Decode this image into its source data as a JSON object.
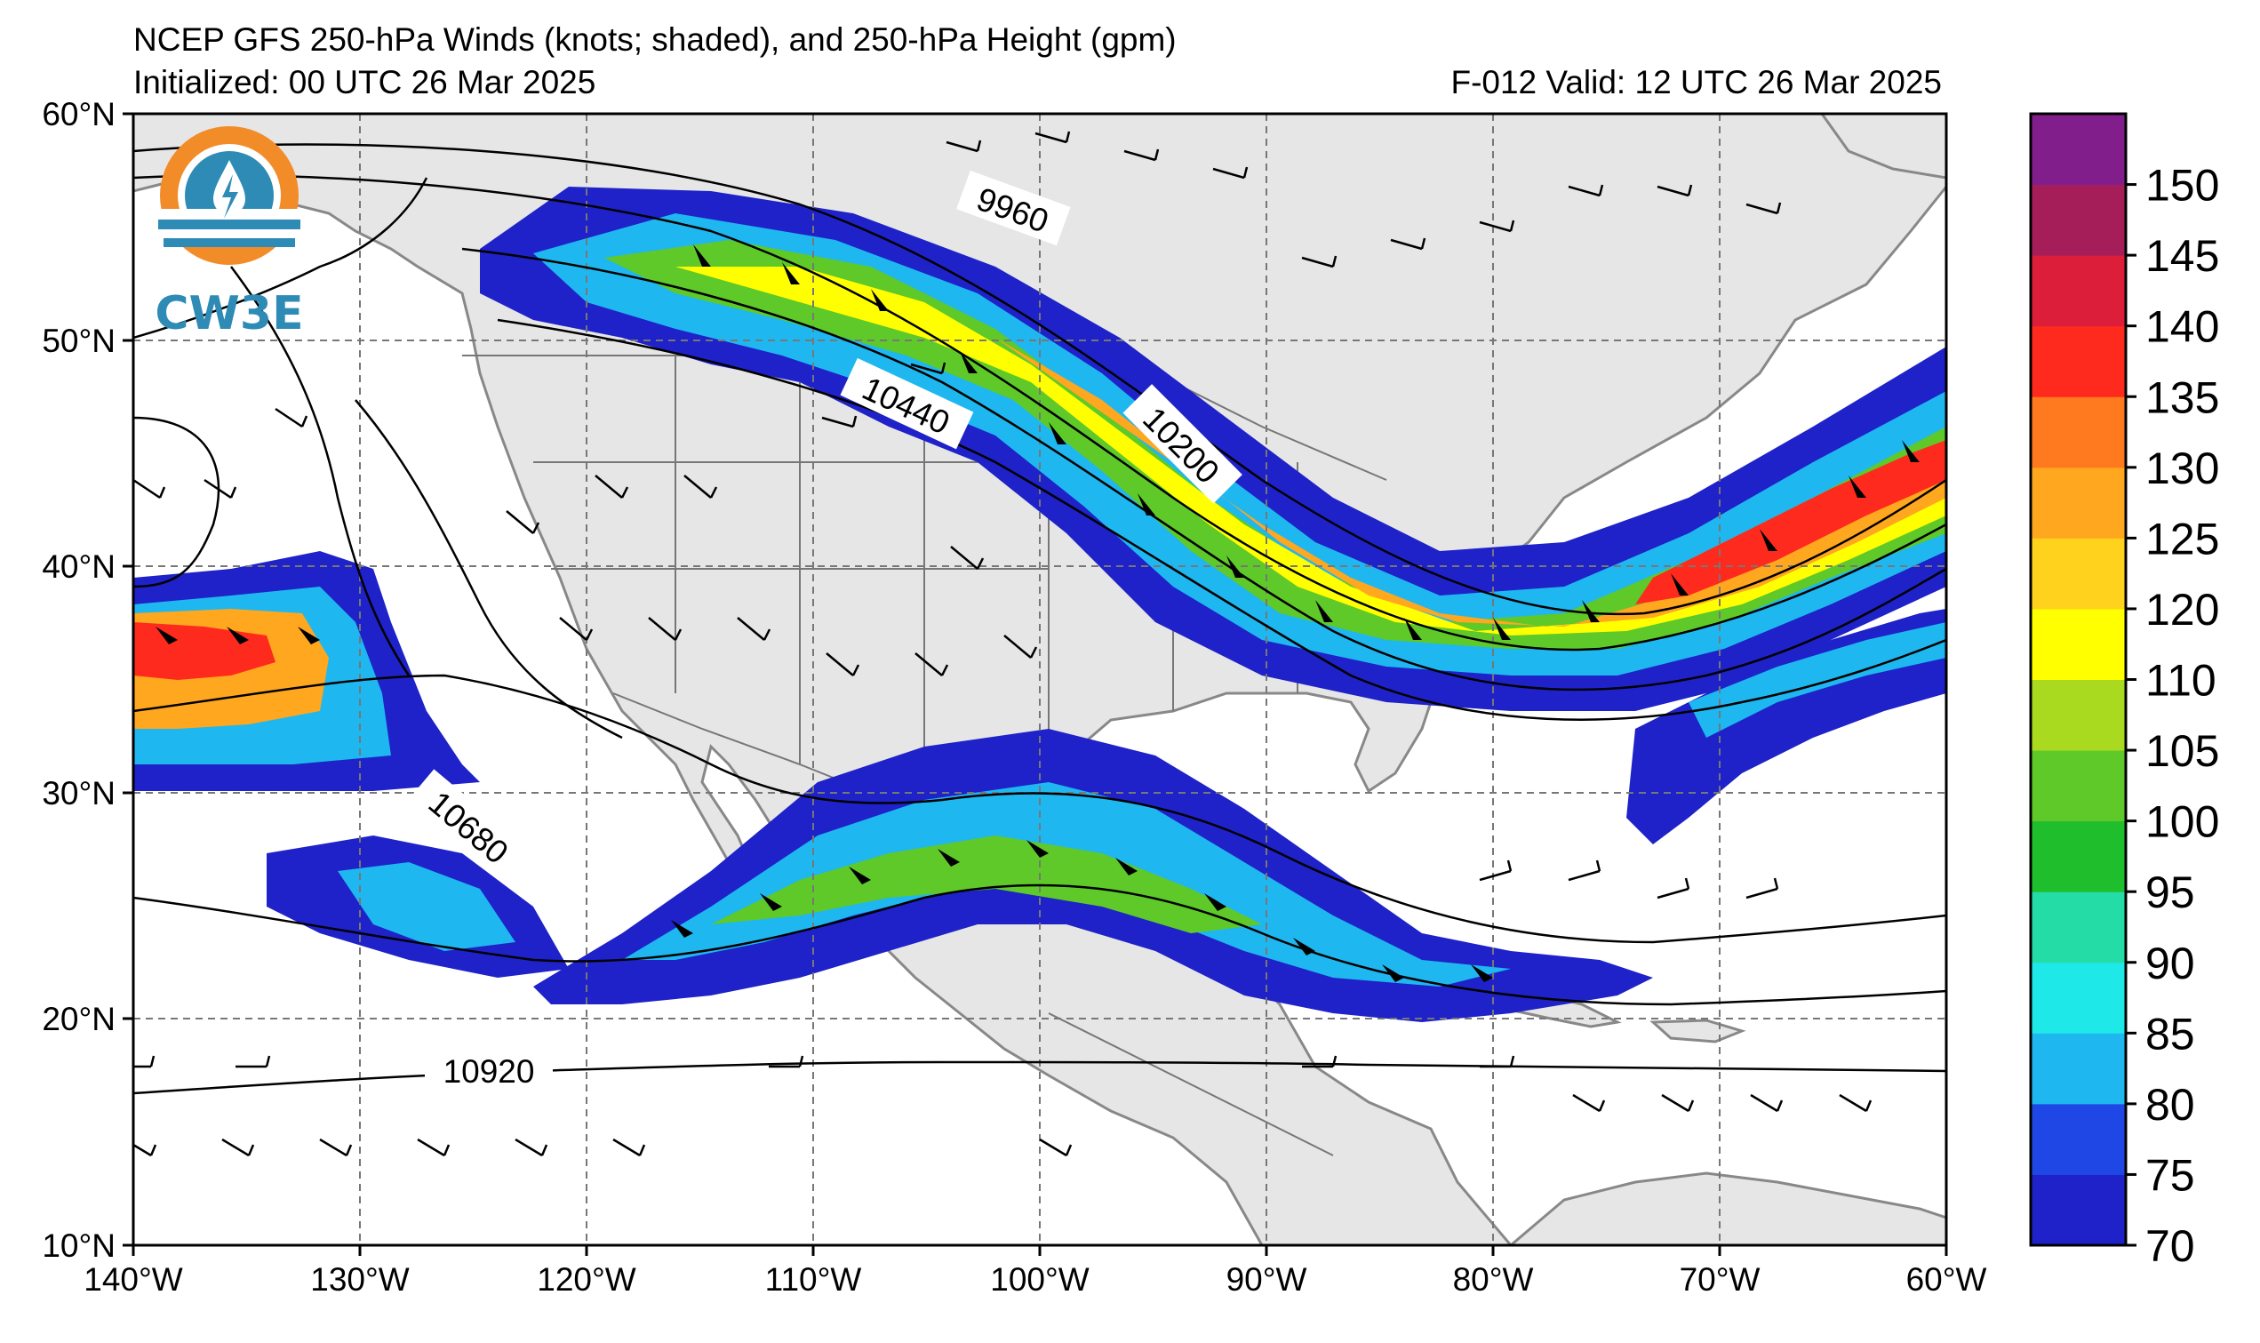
{
  "header": {
    "title": "NCEP GFS 250-hPa Winds (knots; shaded), and 250-hPa Height (gpm)",
    "initialized": "Initialized: 00 UTC 26 Mar 2025",
    "valid": "F-012  Valid: 12 UTC 26 Mar 2025"
  },
  "logo": {
    "text": "CW3E"
  },
  "axes": {
    "lat_labels": [
      "60°N",
      "50°N",
      "40°N",
      "30°N",
      "20°N",
      "10°N"
    ],
    "lon_labels": [
      "140°W",
      "130°W",
      "120°W",
      "110°W",
      "100°W",
      "90°W",
      "80°W",
      "70°W",
      "60°W"
    ]
  },
  "contour_labels": [
    "9960",
    "10200",
    "10440",
    "10680",
    "10920"
  ],
  "colorbar": {
    "levels": [
      "70",
      "75",
      "80",
      "85",
      "90",
      "95",
      "100",
      "105",
      "110",
      "120",
      "125",
      "130",
      "135",
      "140",
      "145",
      "150"
    ],
    "tick_labels": [
      "150",
      "145",
      "140",
      "135",
      "130",
      "125",
      "120",
      "110",
      "105",
      "100",
      "95",
      "90",
      "85",
      "80",
      "75",
      "70"
    ],
    "colors": [
      "#1e22c8",
      "#1f47e6",
      "#1fb7f0",
      "#1fe8e8",
      "#23dca6",
      "#1fbe2d",
      "#5ec929",
      "#a9da20",
      "#ffff00",
      "#ffd21e",
      "#ffa71e",
      "#ff7a1e",
      "#ff2a1e",
      "#dc1e3a",
      "#a51e5a",
      "#821e8c"
    ]
  }
}
